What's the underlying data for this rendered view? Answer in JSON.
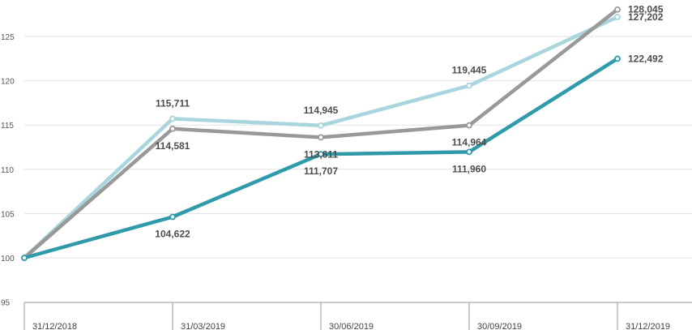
{
  "chart_data": {
    "type": "line",
    "categories": [
      "31/12/2018",
      "31/03/2019",
      "30/06/2019",
      "30/09/2019",
      "31/12/2019"
    ],
    "ylim": [
      95,
      128.5
    ],
    "yticks": [
      95,
      100,
      105,
      110,
      115,
      120,
      125
    ],
    "grid": true,
    "series": [
      {
        "color": "#a8d5de",
        "values": [
          100,
          115.711,
          114.945,
          119.445,
          127.202
        ],
        "labels": [
          "",
          "115,711",
          "114,945",
          "119,445",
          "127,202"
        ],
        "label_pos": [
          "",
          "above",
          "above",
          "above",
          "right"
        ]
      },
      {
        "color": "#999999",
        "values": [
          100,
          114.581,
          113.611,
          114.964,
          128.045
        ],
        "labels": [
          "",
          "114,581",
          "113,611",
          "114,964",
          "128,045"
        ],
        "label_pos": [
          "",
          "below",
          "below",
          "below",
          "right"
        ]
      },
      {
        "color": "#2e9aaa",
        "values": [
          100,
          104.622,
          111.707,
          111.96,
          122.492
        ],
        "labels": [
          "",
          "104,622",
          "111,707",
          "111,960",
          "122,492"
        ],
        "label_pos": [
          "",
          "below",
          "below",
          "below",
          "right"
        ]
      }
    ]
  }
}
